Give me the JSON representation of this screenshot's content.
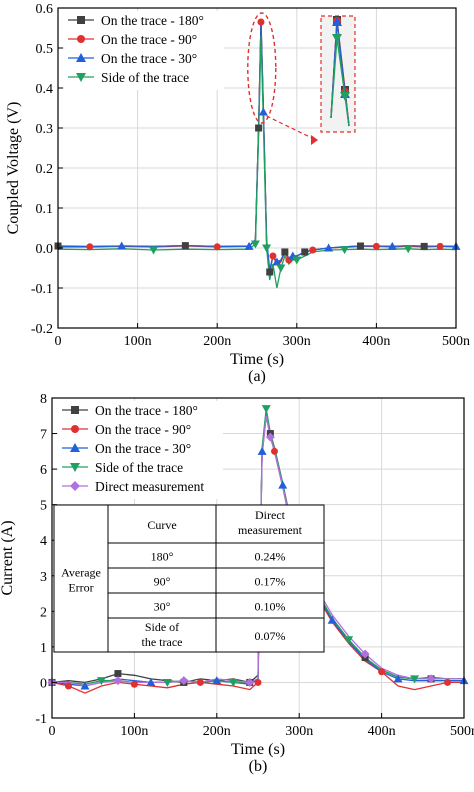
{
  "chart_data": [
    {
      "type": "line",
      "panel_label": "(a)",
      "xlabel": "Time (s)",
      "ylabel": "Coupled Voltage (V)",
      "xlim": [
        0,
        500
      ],
      "ylim": [
        -0.2,
        0.6
      ],
      "x_ticks": [
        "0",
        "100n",
        "200n",
        "300n",
        "400n",
        "500n"
      ],
      "y_ticks": [
        "-0.2",
        "-0.1",
        "0.0",
        "0.1",
        "0.2",
        "0.3",
        "0.4",
        "0.5",
        "0.6"
      ],
      "legend_position": "top-left",
      "grid": true,
      "series": [
        {
          "name": "On the trace - 180°",
          "color": "#404040",
          "marker": "square",
          "x": [
            0,
            40,
            80,
            120,
            160,
            200,
            240,
            248,
            252,
            255,
            258,
            262,
            266,
            270,
            275,
            280,
            285,
            290,
            295,
            300,
            310,
            320,
            340,
            360,
            380,
            400,
            420,
            440,
            460,
            480,
            500
          ],
          "y": [
            0.005,
            0.004,
            0.005,
            0.004,
            0.006,
            0.004,
            0.005,
            0.02,
            0.3,
            0.57,
            0.35,
            0.02,
            -0.06,
            -0.02,
            -0.04,
            -0.03,
            -0.01,
            -0.03,
            -0.02,
            -0.02,
            -0.01,
            -0.005,
            0.0,
            0.003,
            0.005,
            0.005,
            0.004,
            0.005,
            0.004,
            0.005,
            0.004
          ]
        },
        {
          "name": "On the trace - 90°",
          "color": "#e03030",
          "marker": "circle",
          "x": [
            0,
            40,
            80,
            120,
            160,
            200,
            240,
            248,
            252,
            255,
            258,
            262,
            266,
            270,
            275,
            280,
            285,
            290,
            295,
            300,
            310,
            320,
            340,
            360,
            380,
            400,
            420,
            440,
            460,
            480,
            500
          ],
          "y": [
            0.003,
            0.003,
            0.004,
            0.003,
            0.005,
            0.003,
            0.004,
            0.02,
            0.3,
            0.565,
            0.34,
            0.015,
            -0.06,
            -0.02,
            -0.04,
            -0.035,
            -0.01,
            -0.03,
            -0.02,
            -0.02,
            -0.01,
            -0.005,
            0.0,
            0.002,
            0.004,
            0.004,
            0.003,
            0.004,
            0.003,
            0.004,
            0.003
          ]
        },
        {
          "name": "On the trace - 30°",
          "color": "#2060d8",
          "marker": "triangle-up",
          "x": [
            0,
            40,
            80,
            120,
            160,
            200,
            240,
            248,
            252,
            255,
            258,
            262,
            266,
            270,
            275,
            280,
            285,
            290,
            295,
            300,
            310,
            320,
            340,
            360,
            380,
            400,
            420,
            440,
            460,
            480,
            500
          ],
          "y": [
            0.004,
            0.003,
            0.005,
            0.004,
            0.006,
            0.004,
            0.004,
            0.02,
            0.3,
            0.56,
            0.34,
            0.02,
            -0.055,
            -0.02,
            -0.035,
            -0.03,
            -0.01,
            -0.025,
            -0.02,
            -0.02,
            -0.01,
            -0.005,
            0.0,
            0.003,
            0.005,
            0.005,
            0.004,
            0.006,
            0.005,
            0.004,
            0.004
          ]
        },
        {
          "name": "Side of the trace",
          "color": "#20a060",
          "marker": "triangle-down",
          "x": [
            0,
            40,
            80,
            120,
            160,
            200,
            240,
            248,
            252,
            255,
            258,
            262,
            266,
            270,
            275,
            280,
            285,
            290,
            295,
            300,
            310,
            320,
            340,
            360,
            380,
            400,
            420,
            440,
            460,
            480,
            500
          ],
          "y": [
            -0.003,
            -0.004,
            -0.002,
            -0.005,
            -0.003,
            -0.004,
            -0.003,
            0.01,
            0.28,
            0.53,
            0.31,
            0.0,
            -0.08,
            -0.04,
            -0.1,
            -0.05,
            -0.02,
            -0.04,
            -0.03,
            -0.03,
            -0.02,
            -0.01,
            -0.005,
            -0.004,
            -0.003,
            -0.004,
            -0.003,
            -0.002,
            -0.004,
            -0.003,
            -0.004
          ]
        }
      ],
      "annotation": {
        "type": "zoom-inset",
        "note": "dashed red ellipse around peak with arrow to zoomed inset"
      }
    },
    {
      "type": "line",
      "panel_label": "(b)",
      "xlabel": "Time (s)",
      "ylabel": "Current (A)",
      "xlim": [
        0,
        500
      ],
      "ylim": [
        -1,
        8
      ],
      "x_ticks": [
        "0",
        "100n",
        "200n",
        "300n",
        "400n",
        "500n"
      ],
      "y_ticks": [
        "-1",
        "0",
        "1",
        "2",
        "3",
        "4",
        "5",
        "6",
        "7",
        "8"
      ],
      "legend_position": "top-left",
      "grid": true,
      "series": [
        {
          "name": "On the trace - 180°",
          "color": "#404040",
          "marker": "square",
          "x": [
            0,
            20,
            40,
            60,
            80,
            100,
            120,
            140,
            160,
            180,
            200,
            220,
            240,
            250,
            255,
            260,
            265,
            270,
            280,
            290,
            300,
            320,
            340,
            360,
            380,
            400,
            420,
            440,
            460,
            480,
            500
          ],
          "y": [
            0.0,
            0.05,
            0.0,
            0.1,
            0.25,
            0.2,
            0.1,
            0.05,
            0.0,
            0.1,
            0.05,
            0.1,
            0.0,
            0.2,
            6.5,
            7.6,
            7.0,
            6.6,
            5.6,
            4.5,
            3.7,
            2.6,
            1.8,
            1.2,
            0.7,
            0.35,
            0.15,
            0.1,
            0.1,
            0.1,
            0.1
          ]
        },
        {
          "name": "On the trace - 90°",
          "color": "#e03030",
          "marker": "circle",
          "x": [
            0,
            20,
            40,
            60,
            80,
            100,
            120,
            140,
            160,
            180,
            200,
            220,
            240,
            250,
            255,
            260,
            265,
            270,
            280,
            290,
            300,
            320,
            340,
            360,
            380,
            400,
            420,
            440,
            460,
            480,
            500
          ],
          "y": [
            0.0,
            -0.1,
            -0.3,
            -0.1,
            0.0,
            -0.05,
            -0.1,
            -0.15,
            -0.05,
            0.0,
            -0.05,
            -0.1,
            -0.2,
            0.0,
            6.4,
            7.5,
            6.9,
            6.5,
            5.5,
            4.4,
            3.6,
            2.5,
            1.7,
            1.1,
            0.6,
            0.3,
            -0.1,
            -0.2,
            -0.1,
            0.0,
            0.0
          ]
        },
        {
          "name": "On the trace - 30°",
          "color": "#2060d8",
          "marker": "triangle-up",
          "x": [
            0,
            20,
            40,
            60,
            80,
            100,
            120,
            140,
            160,
            180,
            200,
            220,
            240,
            250,
            255,
            260,
            265,
            270,
            280,
            290,
            300,
            320,
            340,
            360,
            380,
            400,
            420,
            440,
            460,
            480,
            500
          ],
          "y": [
            0.0,
            -0.05,
            -0.1,
            0.0,
            0.1,
            0.05,
            0.0,
            0.0,
            0.05,
            0.0,
            0.05,
            0.0,
            -0.05,
            0.1,
            6.5,
            7.55,
            6.95,
            6.55,
            5.55,
            4.45,
            3.65,
            2.55,
            1.75,
            1.15,
            0.65,
            0.3,
            0.1,
            0.05,
            0.05,
            0.05,
            0.05
          ]
        },
        {
          "name": "Side of the trace",
          "color": "#20a060",
          "marker": "triangle-down",
          "x": [
            0,
            20,
            40,
            60,
            80,
            100,
            120,
            140,
            160,
            180,
            200,
            220,
            240,
            250,
            255,
            260,
            265,
            270,
            280,
            290,
            300,
            320,
            340,
            360,
            380,
            400,
            420,
            440,
            460,
            480,
            500
          ],
          "y": [
            0.0,
            0.0,
            -0.05,
            0.05,
            0.05,
            0.0,
            0.0,
            0.0,
            0.05,
            0.0,
            0.05,
            0.0,
            0.0,
            0.1,
            6.6,
            7.7,
            7.0,
            6.6,
            5.6,
            4.5,
            3.7,
            2.6,
            1.8,
            1.2,
            0.7,
            0.35,
            0.15,
            0.1,
            0.15,
            0.1,
            0.1
          ]
        },
        {
          "name": "Direct measurement",
          "color": "#b070e0",
          "marker": "diamond",
          "x": [
            0,
            20,
            40,
            60,
            80,
            100,
            120,
            140,
            160,
            180,
            200,
            220,
            240,
            250,
            255,
            260,
            265,
            270,
            280,
            290,
            300,
            320,
            340,
            360,
            380,
            400,
            420,
            440,
            460,
            480,
            500
          ],
          "y": [
            0.0,
            0.0,
            -0.1,
            0.0,
            0.05,
            0.0,
            0.0,
            0.0,
            0.05,
            0.0,
            0.1,
            0.05,
            0.0,
            0.1,
            6.4,
            7.5,
            6.9,
            6.5,
            5.5,
            4.5,
            3.7,
            2.7,
            1.9,
            1.3,
            0.8,
            0.4,
            0.2,
            0.1,
            0.1,
            0.1,
            0.1
          ]
        }
      ],
      "table": {
        "row_header": "Average Error",
        "columns": [
          "Curve",
          "Direct measurement"
        ],
        "rows": [
          [
            "180°",
            "0.24%"
          ],
          [
            "90°",
            "0.17%"
          ],
          [
            "30°",
            "0.10%"
          ],
          [
            "Side of the trace",
            "0.07%"
          ]
        ]
      }
    }
  ]
}
